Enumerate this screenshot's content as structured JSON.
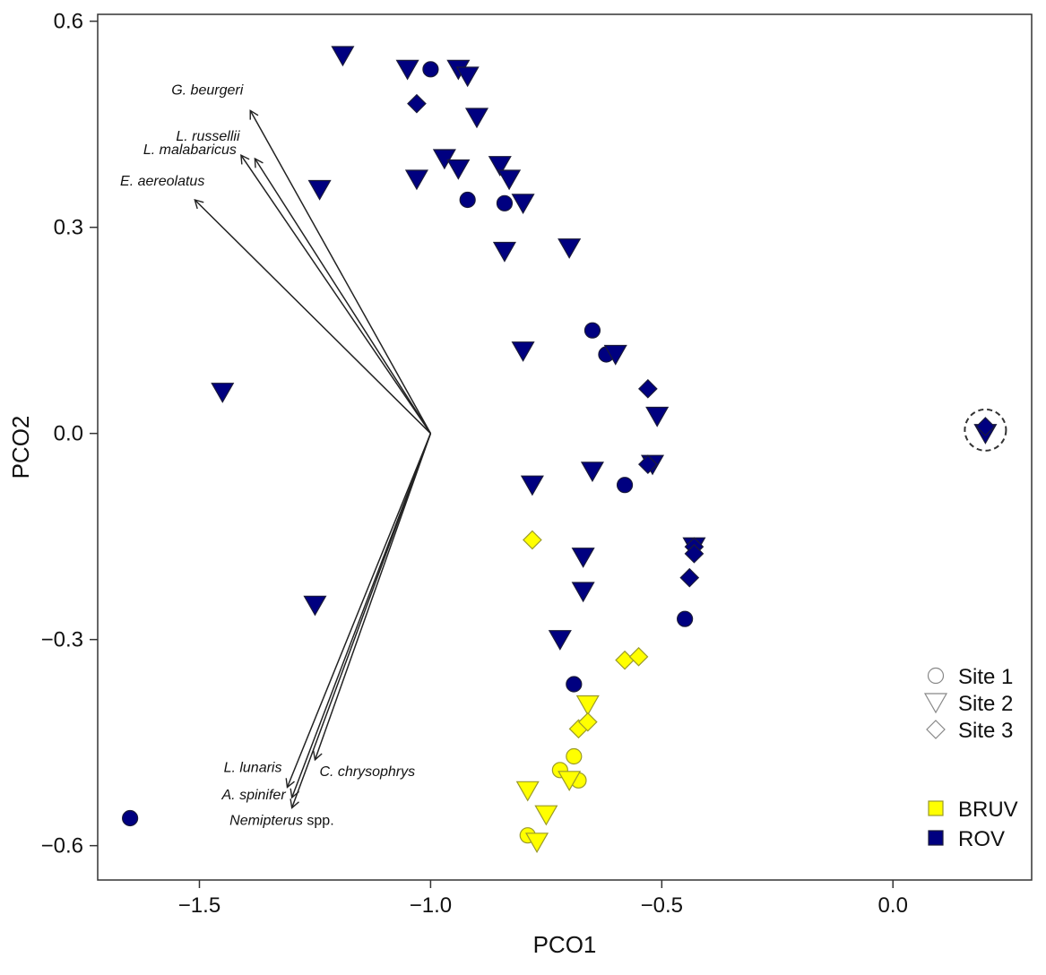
{
  "chart_data": {
    "type": "scatter",
    "xlabel": "PCO1",
    "ylabel": "PCO2",
    "xlim": [
      -1.72,
      0.3
    ],
    "ylim": [
      -0.65,
      0.61
    ],
    "xticks": [
      {
        "value": -1.5,
        "label": "−1.5"
      },
      {
        "value": -1.0,
        "label": "−1.0"
      },
      {
        "value": -0.5,
        "label": "−0.5"
      },
      {
        "value": 0.0,
        "label": "0.0"
      }
    ],
    "yticks": [
      {
        "value": 0.6,
        "label": "0.6"
      },
      {
        "value": 0.3,
        "label": "0.3"
      },
      {
        "value": 0.0,
        "label": "0.0"
      },
      {
        "value": -0.3,
        "label": "−0.3"
      },
      {
        "value": -0.6,
        "label": "−0.6"
      }
    ],
    "grid": false,
    "colors": {
      "BRUV": "#ffff00",
      "ROV": "#000080"
    },
    "shapes": {
      "Site 1": "circle",
      "Site 2": "triangle-down",
      "Site 3": "diamond"
    },
    "series": [
      {
        "method": "ROV",
        "site": "Site 1",
        "x": [
          -1.0,
          -0.92,
          -0.84,
          -0.65,
          -0.62,
          -0.58,
          -0.45,
          -0.69,
          -1.65
        ],
        "y": [
          0.53,
          0.34,
          0.335,
          0.15,
          0.115,
          -0.075,
          -0.27,
          -0.365,
          -0.56
        ]
      },
      {
        "method": "ROV",
        "site": "Site 2",
        "x": [
          -1.19,
          -1.05,
          -0.94,
          -0.92,
          -0.9,
          -0.85,
          -0.83,
          -0.97,
          -0.94,
          -1.03,
          -1.24,
          -0.8,
          -0.84,
          -0.7,
          -0.8,
          -0.6,
          -0.51,
          -0.52,
          -0.65,
          -0.78,
          -0.67,
          -0.67,
          -0.72,
          -0.43,
          -1.45,
          -1.25,
          0.2
        ],
        "y": [
          0.55,
          0.53,
          0.53,
          0.52,
          0.46,
          0.39,
          0.37,
          0.4,
          0.385,
          0.37,
          0.355,
          0.335,
          0.265,
          0.27,
          0.12,
          0.115,
          0.025,
          -0.045,
          -0.055,
          -0.075,
          -0.18,
          -0.23,
          -0.3,
          -0.165,
          0.06,
          -0.25,
          0.0
        ]
      },
      {
        "method": "ROV",
        "site": "Site 3",
        "x": [
          -1.03,
          -0.53,
          -0.53,
          -0.43,
          -0.43,
          -0.44,
          0.2
        ],
        "y": [
          0.48,
          0.065,
          -0.045,
          -0.165,
          -0.175,
          -0.21,
          0.01
        ]
      },
      {
        "method": "BRUV",
        "site": "Site 1",
        "x": [
          -0.69,
          -0.72,
          -0.68,
          -0.79
        ],
        "y": [
          -0.47,
          -0.49,
          -0.505,
          -0.585
        ]
      },
      {
        "method": "BRUV",
        "site": "Site 2",
        "x": [
          -0.66,
          -0.79,
          -0.7,
          -0.75,
          -0.77
        ],
        "y": [
          -0.395,
          -0.52,
          -0.505,
          -0.555,
          -0.595
        ]
      },
      {
        "method": "BRUV",
        "site": "Site 3",
        "x": [
          -0.78,
          -0.58,
          -0.55,
          -0.68,
          -0.66
        ],
        "y": [
          -0.155,
          -0.33,
          -0.325,
          -0.43,
          -0.42
        ]
      }
    ],
    "vectors": {
      "origin": [
        -1.0,
        0.0
      ],
      "items": [
        {
          "label": "G. beurgeri",
          "x": -1.39,
          "y": 0.47
        },
        {
          "label": "L. russellii",
          "x": -1.38,
          "y": 0.4
        },
        {
          "label": "L. malabaricus",
          "x": -1.41,
          "y": 0.405
        },
        {
          "label": "E. aereolatus",
          "x": -1.51,
          "y": 0.34
        },
        {
          "label": "L. lunaris",
          "x": -1.31,
          "y": -0.515
        },
        {
          "label": "C. chrysophrys",
          "x": -1.25,
          "y": -0.475
        },
        {
          "label": "A. spinifer",
          "x": -1.3,
          "y": -0.53
        },
        {
          "label": "Nemipterus",
          "label_suffix": " spp.",
          "x": -1.3,
          "y": -0.545
        }
      ]
    },
    "highlight": {
      "x": 0.2,
      "y": 0.005
    },
    "legend": {
      "shapes": [
        {
          "label": "Site 1",
          "shape": "circle"
        },
        {
          "label": "Site 2",
          "shape": "triangle-down"
        },
        {
          "label": "Site 3",
          "shape": "diamond"
        }
      ],
      "methods": [
        {
          "label": "BRUV",
          "color": "#ffff00"
        },
        {
          "label": "ROV",
          "color": "#000080"
        }
      ],
      "placement": "bottom-right"
    }
  }
}
